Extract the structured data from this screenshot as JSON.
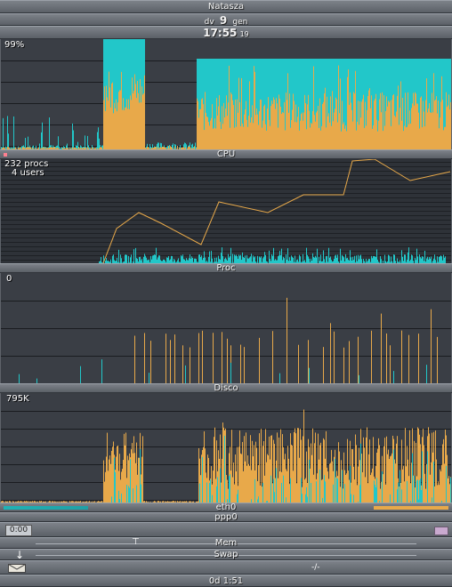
{
  "header": {
    "hostname": "Natasza",
    "date_weekday": "dv",
    "date_day": "9",
    "date_month": "gen",
    "time": "17:55",
    "time_seconds": "19"
  },
  "cpu": {
    "label": "CPU",
    "readout": "99%"
  },
  "proc": {
    "label": "Proc",
    "readout_procs": "232 procs",
    "readout_users": "4 users"
  },
  "disk": {
    "label": "Disco",
    "readout": "0"
  },
  "net": {
    "readout": "795K",
    "eth_label": "eth0",
    "ppp_label": "ppp0",
    "ppp_timer": "0:00"
  },
  "mem": {
    "mem_label": "Mem",
    "swap_label": "Swap",
    "mail_count": "-/-"
  },
  "uptime": {
    "text": "0d  1:51"
  },
  "colors": {
    "background": "#3a3e45",
    "gridline": "#1a1c20",
    "user_cpu": "#e8a94a",
    "sys_cpu": "#22c7c9",
    "proc_line": "#e8a94a"
  }
}
